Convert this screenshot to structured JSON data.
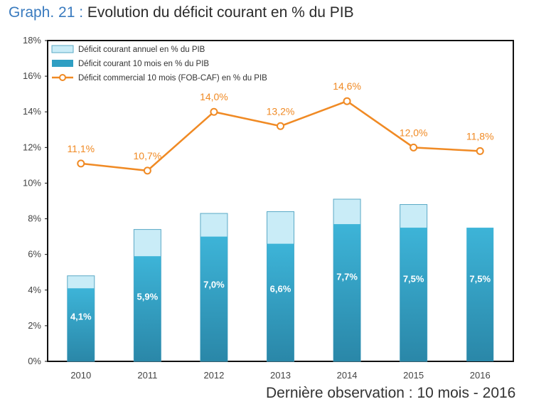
{
  "header": {
    "prefix": "Graph. 21 :",
    "title": "Evolution du déficit courant en % du PIB"
  },
  "footer": {
    "note": "Dernière observation : 10 mois - 2016"
  },
  "colors": {
    "annual_bar": "#c9ecf7",
    "ten_month_bar": "#2f9fc3",
    "line": "#f08a24"
  },
  "chart_data": {
    "type": "bar",
    "categories": [
      "2010",
      "2011",
      "2012",
      "2013",
      "2014",
      "2015",
      "2016"
    ],
    "y_ticks": [
      "0%",
      "2%",
      "4%",
      "6%",
      "8%",
      "10%",
      "12%",
      "14%",
      "16%",
      "18%"
    ],
    "ylim": [
      0,
      18
    ],
    "grid": false,
    "legend_position": "top-left",
    "series": [
      {
        "name": "Déficit courant annuel en % du PIB",
        "type": "bar",
        "values": [
          4.8,
          7.4,
          8.3,
          8.4,
          9.1,
          8.8,
          null
        ]
      },
      {
        "name": "Déficit courant 10 mois en % du PIB",
        "type": "bar",
        "values": [
          4.1,
          5.9,
          7.0,
          6.6,
          7.7,
          7.5,
          7.5
        ],
        "labels": [
          "4,1%",
          "5,9%",
          "7,0%",
          "6,6%",
          "7,7%",
          "7,5%",
          "7,5%"
        ]
      },
      {
        "name": "Déficit commercial 10 mois (FOB-CAF) en % du PIB",
        "type": "line",
        "values": [
          11.1,
          10.7,
          14.0,
          13.2,
          14.6,
          12.0,
          11.8
        ],
        "labels": [
          "11,1%",
          "10,7%",
          "14,0%",
          "13,2%",
          "14,6%",
          "12,0%",
          "11,8%"
        ]
      }
    ]
  }
}
